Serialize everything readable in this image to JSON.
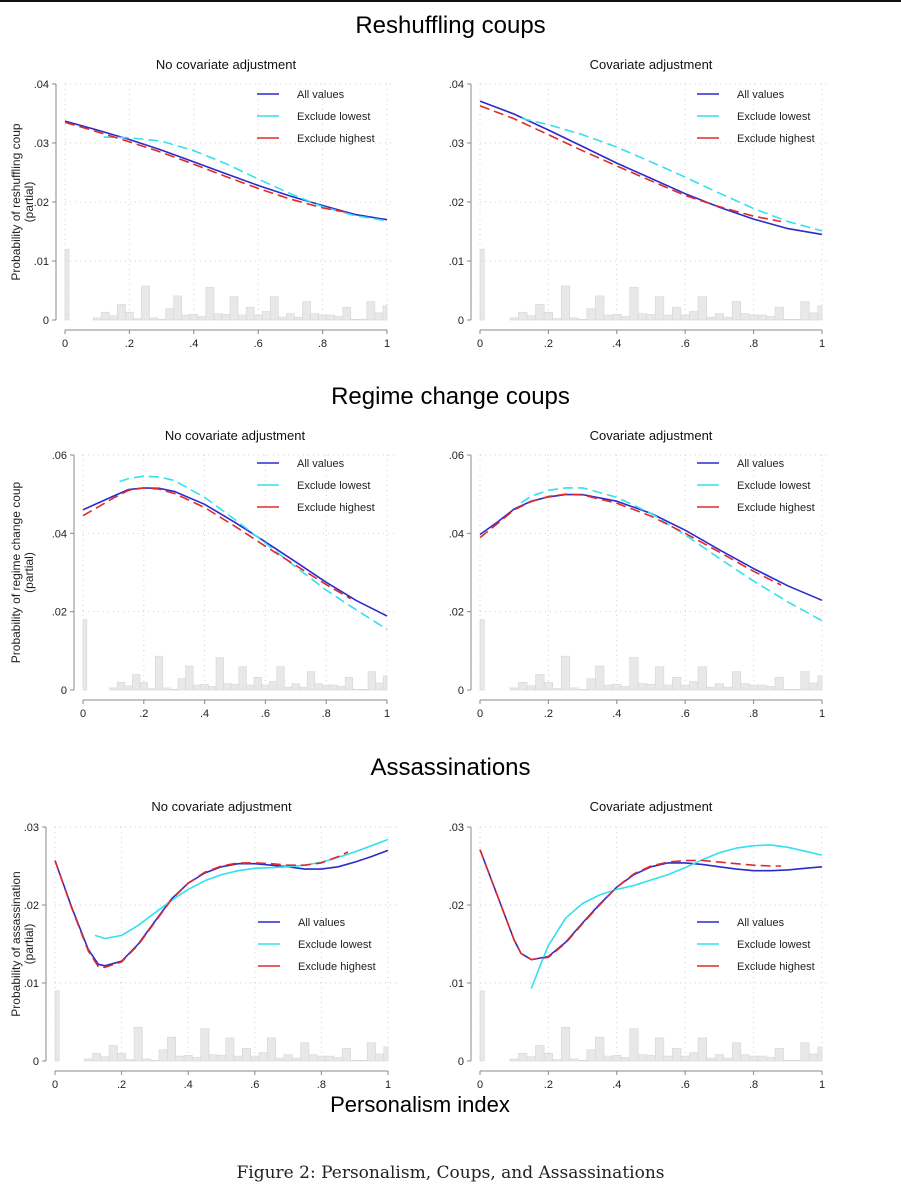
{
  "figure": {
    "caption": "Figure 2: Personalism, Coups, and Assassinations",
    "x_axis_title": "Personalism index",
    "row_titles": [
      "Reshuffling coups",
      "Regime change coups",
      "Assassinations"
    ],
    "colors": {
      "all_values": "#2b2bcc",
      "exclude_lowest": "#33e0f0",
      "exclude_highest": "#e02a2a",
      "histogram": "#e8e8e8",
      "grid": "#cfcfcf"
    }
  },
  "chart_data": [
    {
      "type": "line",
      "row": "Reshuffling coups",
      "title": "No covariate adjustment",
      "ylabel": "Probability of reshuffling coup (partial)",
      "xlabel": "",
      "xlim": [
        0,
        1
      ],
      "ylim": [
        0,
        0.04
      ],
      "xticks": [
        "0",
        ".2",
        ".4",
        ".6",
        ".8",
        "1"
      ],
      "yticks": [
        "0",
        ".01",
        ".02",
        ".03",
        ".04"
      ],
      "grid": true,
      "legend_position": "top-right",
      "series": [
        {
          "name": "All values",
          "style": "solid",
          "x": [
            0,
            0.1,
            0.2,
            0.3,
            0.4,
            0.5,
            0.6,
            0.7,
            0.8,
            0.9,
            1.0
          ],
          "y": [
            0.0337,
            0.0322,
            0.0306,
            0.0288,
            0.0268,
            0.0248,
            0.0228,
            0.021,
            0.0194,
            0.0179,
            0.017
          ]
        },
        {
          "name": "Exclude lowest",
          "style": "dashed",
          "x": [
            0.12,
            0.2,
            0.3,
            0.4,
            0.5,
            0.6,
            0.7,
            0.8,
            0.9,
            1.0
          ],
          "y": [
            0.031,
            0.0309,
            0.0303,
            0.0287,
            0.0265,
            0.0239,
            0.0214,
            0.0192,
            0.0177,
            0.0168
          ]
        },
        {
          "name": "Exclude highest",
          "style": "dashed",
          "x": [
            0,
            0.1,
            0.2,
            0.3,
            0.4,
            0.5,
            0.6,
            0.7,
            0.8,
            0.88
          ],
          "y": [
            0.0335,
            0.0319,
            0.0302,
            0.0284,
            0.0264,
            0.0243,
            0.0223,
            0.0205,
            0.019,
            0.0182
          ]
        }
      ]
    },
    {
      "type": "line",
      "row": "Reshuffling coups",
      "title": "Covariate adjustment",
      "ylabel": "",
      "xlabel": "",
      "xlim": [
        0,
        1
      ],
      "ylim": [
        0,
        0.04
      ],
      "xticks": [
        "0",
        ".2",
        ".4",
        ".6",
        ".8",
        "1"
      ],
      "yticks": [
        "0",
        ".01",
        ".02",
        ".03",
        ".04"
      ],
      "grid": true,
      "legend_position": "top-right",
      "series": [
        {
          "name": "All values",
          "style": "solid",
          "x": [
            0,
            0.1,
            0.2,
            0.3,
            0.4,
            0.5,
            0.6,
            0.7,
            0.8,
            0.9,
            1.0
          ],
          "y": [
            0.0371,
            0.0349,
            0.0322,
            0.0294,
            0.0266,
            0.024,
            0.0214,
            0.0191,
            0.0171,
            0.0155,
            0.0145
          ]
        },
        {
          "name": "Exclude lowest",
          "style": "dashed",
          "x": [
            0.12,
            0.2,
            0.3,
            0.4,
            0.5,
            0.6,
            0.7,
            0.8,
            0.9,
            1.0
          ],
          "y": [
            0.0342,
            0.0331,
            0.0314,
            0.0293,
            0.0268,
            0.0242,
            0.0215,
            0.0189,
            0.0167,
            0.0151
          ]
        },
        {
          "name": "Exclude highest",
          "style": "dashed",
          "x": [
            0,
            0.1,
            0.2,
            0.3,
            0.4,
            0.5,
            0.6,
            0.7,
            0.8,
            0.88
          ],
          "y": [
            0.0363,
            0.0341,
            0.0314,
            0.0287,
            0.0261,
            0.0236,
            0.0211,
            0.0192,
            0.0176,
            0.0167
          ]
        }
      ]
    },
    {
      "type": "line",
      "row": "Regime change coups",
      "title": "No covariate adjustment",
      "ylabel": "Probability of regime change coup (partial)",
      "xlabel": "",
      "xlim": [
        0,
        1
      ],
      "ylim": [
        0,
        0.06
      ],
      "xticks": [
        "0",
        ".2",
        ".4",
        ".6",
        ".8",
        "1"
      ],
      "yticks": [
        "0",
        ".02",
        ".04",
        ".06"
      ],
      "grid": true,
      "legend_position": "top-right",
      "series": [
        {
          "name": "All values",
          "style": "solid",
          "x": [
            0,
            0.1,
            0.15,
            0.2,
            0.25,
            0.3,
            0.4,
            0.5,
            0.6,
            0.7,
            0.8,
            0.9,
            1.0
          ],
          "y": [
            0.046,
            0.0495,
            0.0512,
            0.0516,
            0.0515,
            0.0507,
            0.0474,
            0.0428,
            0.0378,
            0.0327,
            0.0275,
            0.0228,
            0.0189
          ]
        },
        {
          "name": "Exclude lowest",
          "style": "dashed",
          "x": [
            0.12,
            0.15,
            0.2,
            0.25,
            0.3,
            0.4,
            0.5,
            0.6,
            0.7,
            0.8,
            0.9,
            1.0
          ],
          "y": [
            0.0532,
            0.054,
            0.0546,
            0.0544,
            0.0535,
            0.0492,
            0.0435,
            0.0375,
            0.0314,
            0.0255,
            0.0204,
            0.0155
          ]
        },
        {
          "name": "Exclude highest",
          "style": "dashed",
          "x": [
            0,
            0.1,
            0.15,
            0.2,
            0.25,
            0.3,
            0.4,
            0.5,
            0.6,
            0.7,
            0.8,
            0.88
          ],
          "y": [
            0.0445,
            0.049,
            0.051,
            0.0516,
            0.0513,
            0.0502,
            0.0466,
            0.0418,
            0.0367,
            0.0318,
            0.0269,
            0.0233
          ]
        }
      ]
    },
    {
      "type": "line",
      "row": "Regime change coups",
      "title": "Covariate adjustment",
      "ylabel": "",
      "xlabel": "",
      "xlim": [
        0,
        1
      ],
      "ylim": [
        0,
        0.06
      ],
      "xticks": [
        "0",
        ".2",
        ".4",
        ".6",
        ".8",
        "1"
      ],
      "yticks": [
        "0",
        ".02",
        ".04",
        ".06"
      ],
      "grid": true,
      "legend_position": "top-right",
      "series": [
        {
          "name": "All values",
          "style": "solid",
          "x": [
            0,
            0.05,
            0.1,
            0.15,
            0.2,
            0.25,
            0.3,
            0.4,
            0.5,
            0.6,
            0.7,
            0.8,
            0.9,
            1.0
          ],
          "y": [
            0.0397,
            0.0428,
            0.0462,
            0.0482,
            0.0493,
            0.0499,
            0.0499,
            0.0482,
            0.0451,
            0.0408,
            0.0358,
            0.031,
            0.0266,
            0.0229
          ]
        },
        {
          "name": "Exclude lowest",
          "style": "dashed",
          "x": [
            0.12,
            0.15,
            0.2,
            0.25,
            0.3,
            0.4,
            0.5,
            0.6,
            0.7,
            0.8,
            0.9,
            1.0
          ],
          "y": [
            0.0478,
            0.0495,
            0.051,
            0.0516,
            0.0516,
            0.0492,
            0.0451,
            0.0396,
            0.0336,
            0.0278,
            0.0225,
            0.0177
          ]
        },
        {
          "name": "Exclude highest",
          "style": "dashed",
          "x": [
            0,
            0.05,
            0.1,
            0.15,
            0.2,
            0.25,
            0.3,
            0.4,
            0.5,
            0.6,
            0.7,
            0.8,
            0.88
          ],
          "y": [
            0.0389,
            0.0424,
            0.046,
            0.0481,
            0.0494,
            0.05,
            0.0498,
            0.0477,
            0.0444,
            0.04,
            0.0352,
            0.0303,
            0.0268
          ]
        }
      ]
    },
    {
      "type": "line",
      "row": "Assassinations",
      "title": "No covariate adjustment",
      "ylabel": "Probability of assassination (partial)",
      "xlabel": "",
      "xlim": [
        0,
        1
      ],
      "ylim": [
        0,
        0.03
      ],
      "xticks": [
        "0",
        ".2",
        ".4",
        ".6",
        ".8",
        "1"
      ],
      "yticks": [
        "0",
        ".01",
        ".02",
        ".03"
      ],
      "grid": true,
      "legend_position": "center-right",
      "series": [
        {
          "name": "All values",
          "style": "solid",
          "x": [
            0,
            0.05,
            0.1,
            0.13,
            0.15,
            0.2,
            0.25,
            0.3,
            0.35,
            0.4,
            0.45,
            0.5,
            0.55,
            0.6,
            0.65,
            0.7,
            0.75,
            0.8,
            0.85,
            0.9,
            0.95,
            1.0
          ],
          "y": [
            0.0257,
            0.0197,
            0.0143,
            0.0124,
            0.0122,
            0.0128,
            0.015,
            0.0179,
            0.0208,
            0.0228,
            0.0241,
            0.0249,
            0.0253,
            0.0253,
            0.0251,
            0.0249,
            0.0246,
            0.0246,
            0.0249,
            0.0255,
            0.0262,
            0.027
          ]
        },
        {
          "name": "Exclude lowest",
          "style": "solid",
          "x": [
            0.12,
            0.15,
            0.2,
            0.25,
            0.3,
            0.35,
            0.4,
            0.45,
            0.5,
            0.55,
            0.6,
            0.65,
            0.7,
            0.75,
            0.8,
            0.85,
            0.9,
            0.95,
            1.0
          ],
          "y": [
            0.0161,
            0.0157,
            0.0161,
            0.0174,
            0.019,
            0.0206,
            0.022,
            0.0231,
            0.0239,
            0.0244,
            0.0247,
            0.0248,
            0.0249,
            0.0251,
            0.0255,
            0.0261,
            0.0268,
            0.0276,
            0.0284
          ]
        },
        {
          "name": "Exclude highest",
          "style": "dashed",
          "x": [
            0,
            0.05,
            0.1,
            0.13,
            0.15,
            0.2,
            0.25,
            0.3,
            0.35,
            0.4,
            0.45,
            0.5,
            0.55,
            0.6,
            0.65,
            0.7,
            0.75,
            0.8,
            0.85,
            0.88
          ],
          "y": [
            0.0257,
            0.0196,
            0.0141,
            0.0121,
            0.012,
            0.0127,
            0.0149,
            0.0178,
            0.0207,
            0.0228,
            0.0242,
            0.025,
            0.0254,
            0.0254,
            0.0253,
            0.0251,
            0.0251,
            0.0254,
            0.0262,
            0.0268
          ]
        }
      ]
    },
    {
      "type": "line",
      "row": "Assassinations",
      "title": "Covariate adjustment",
      "ylabel": "",
      "xlabel": "",
      "xlim": [
        0,
        1
      ],
      "ylim": [
        0,
        0.03
      ],
      "xticks": [
        "0",
        ".2",
        ".4",
        ".6",
        ".8",
        "1"
      ],
      "yticks": [
        "0",
        ".01",
        ".02",
        ".03"
      ],
      "grid": true,
      "legend_position": "center-right",
      "series": [
        {
          "name": "All values",
          "style": "solid",
          "x": [
            0,
            0.05,
            0.1,
            0.12,
            0.15,
            0.2,
            0.25,
            0.3,
            0.35,
            0.4,
            0.45,
            0.5,
            0.55,
            0.6,
            0.65,
            0.7,
            0.75,
            0.8,
            0.85,
            0.9,
            0.95,
            1.0
          ],
          "y": [
            0.0271,
            0.0213,
            0.0155,
            0.0138,
            0.013,
            0.0134,
            0.0152,
            0.0177,
            0.0201,
            0.0223,
            0.0239,
            0.0249,
            0.0254,
            0.0254,
            0.0252,
            0.0249,
            0.0246,
            0.0244,
            0.0244,
            0.0245,
            0.0247,
            0.0249
          ]
        },
        {
          "name": "Exclude lowest",
          "style": "solid",
          "x": [
            0.15,
            0.18,
            0.2,
            0.25,
            0.3,
            0.35,
            0.4,
            0.45,
            0.5,
            0.55,
            0.6,
            0.65,
            0.7,
            0.75,
            0.8,
            0.85,
            0.9,
            0.95,
            1.0
          ],
          "y": [
            0.0093,
            0.0127,
            0.0148,
            0.0183,
            0.0202,
            0.0213,
            0.022,
            0.0225,
            0.0232,
            0.0239,
            0.0248,
            0.0258,
            0.0267,
            0.0273,
            0.0276,
            0.0277,
            0.0274,
            0.0269,
            0.0264
          ]
        },
        {
          "name": "Exclude highest",
          "style": "dashed",
          "x": [
            0,
            0.05,
            0.1,
            0.12,
            0.15,
            0.2,
            0.25,
            0.3,
            0.35,
            0.4,
            0.45,
            0.5,
            0.55,
            0.6,
            0.65,
            0.7,
            0.75,
            0.8,
            0.85,
            0.88
          ],
          "y": [
            0.0271,
            0.0213,
            0.0155,
            0.0138,
            0.013,
            0.0133,
            0.0151,
            0.0176,
            0.02,
            0.0223,
            0.024,
            0.025,
            0.0255,
            0.0257,
            0.0257,
            0.0255,
            0.0253,
            0.0251,
            0.025,
            0.025
          ]
        }
      ]
    }
  ],
  "histogram": {
    "description": "Density of personalism index (scaled, shared across panels)",
    "bin_width": 0.025,
    "bins": [
      {
        "x": 0.0,
        "h": 1.0
      },
      {
        "x": 0.1,
        "h": 0.03
      },
      {
        "x": 0.125,
        "h": 0.11
      },
      {
        "x": 0.15,
        "h": 0.06
      },
      {
        "x": 0.175,
        "h": 0.22
      },
      {
        "x": 0.2,
        "h": 0.11
      },
      {
        "x": 0.225,
        "h": 0.02
      },
      {
        "x": 0.25,
        "h": 0.48
      },
      {
        "x": 0.275,
        "h": 0.03
      },
      {
        "x": 0.3,
        "h": 0.01
      },
      {
        "x": 0.325,
        "h": 0.16
      },
      {
        "x": 0.35,
        "h": 0.34
      },
      {
        "x": 0.375,
        "h": 0.07
      },
      {
        "x": 0.4,
        "h": 0.08
      },
      {
        "x": 0.425,
        "h": 0.05
      },
      {
        "x": 0.45,
        "h": 0.46
      },
      {
        "x": 0.475,
        "h": 0.09
      },
      {
        "x": 0.5,
        "h": 0.08
      },
      {
        "x": 0.525,
        "h": 0.33
      },
      {
        "x": 0.55,
        "h": 0.07
      },
      {
        "x": 0.575,
        "h": 0.18
      },
      {
        "x": 0.6,
        "h": 0.07
      },
      {
        "x": 0.625,
        "h": 0.12
      },
      {
        "x": 0.65,
        "h": 0.33
      },
      {
        "x": 0.675,
        "h": 0.04
      },
      {
        "x": 0.7,
        "h": 0.09
      },
      {
        "x": 0.725,
        "h": 0.04
      },
      {
        "x": 0.75,
        "h": 0.26
      },
      {
        "x": 0.775,
        "h": 0.09
      },
      {
        "x": 0.8,
        "h": 0.07
      },
      {
        "x": 0.825,
        "h": 0.07
      },
      {
        "x": 0.85,
        "h": 0.05
      },
      {
        "x": 0.875,
        "h": 0.18
      },
      {
        "x": 0.9,
        "h": 0.01
      },
      {
        "x": 0.925,
        "h": 0.01
      },
      {
        "x": 0.95,
        "h": 0.26
      },
      {
        "x": 0.975,
        "h": 0.1
      },
      {
        "x": 1.0,
        "h": 0.2
      }
    ]
  }
}
